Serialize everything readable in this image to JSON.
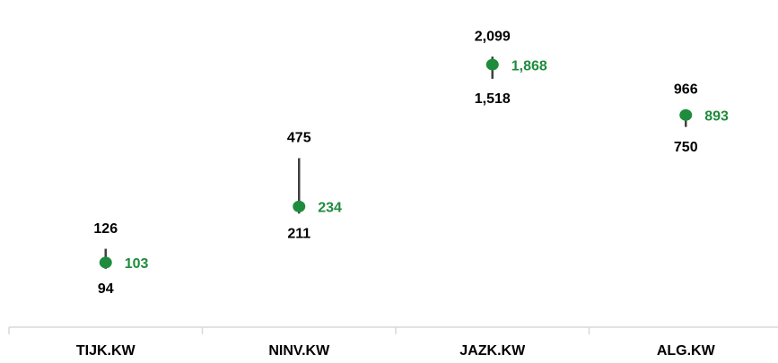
{
  "chart_data": {
    "type": "high-low",
    "categories": [
      "TIJK.KW",
      "NINV.KW",
      "JAZK.KW",
      "ALG.KW"
    ],
    "high": [
      126,
      475,
      2099,
      966
    ],
    "high_labels": [
      "126",
      "475",
      "2,099",
      "966"
    ],
    "low": [
      94,
      211,
      1518,
      750
    ],
    "low_labels": [
      "94",
      "211",
      "1,518",
      "750"
    ],
    "values": [
      103,
      234,
      1868,
      893
    ],
    "value_labels": [
      "103",
      "234",
      "1,868",
      "893"
    ],
    "color": "#1e8c3c",
    "range_color": "#404040",
    "log_scale": true,
    "ylim": [
      40,
      3700
    ]
  }
}
